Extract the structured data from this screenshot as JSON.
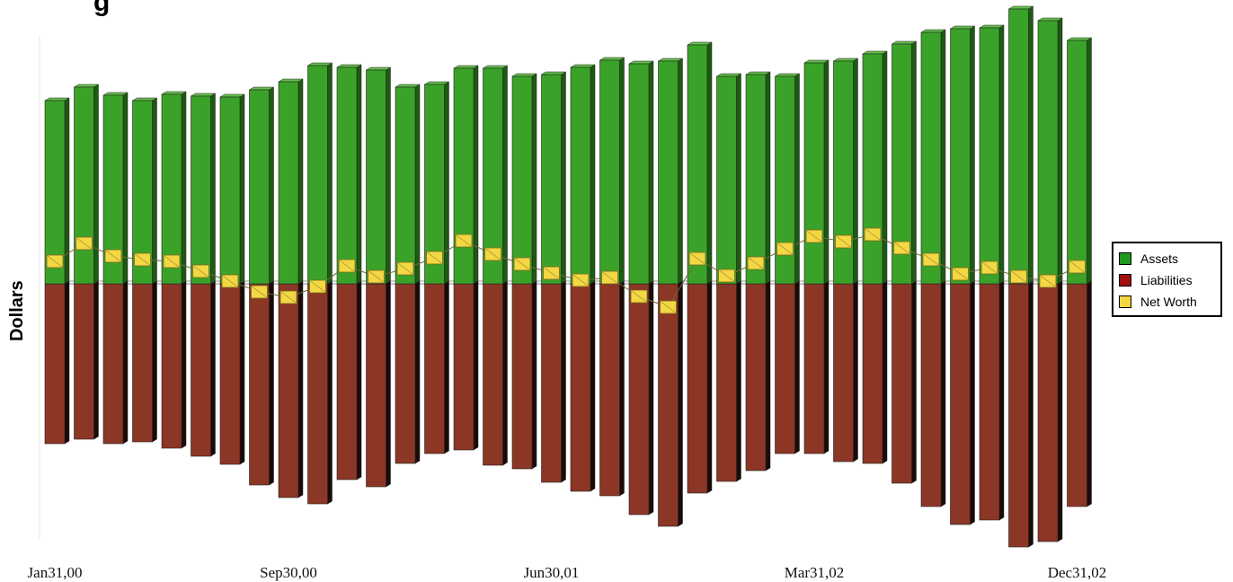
{
  "chart_data": {
    "type": "bar",
    "title": "g",
    "ylabel": "Dollars",
    "x_tick_labels": [
      "Jan31,00",
      "Sep30,00",
      "Jun30,01",
      "Mar31,02",
      "Dec31,02"
    ],
    "x_tick_positions": [
      0,
      8,
      17,
      26,
      35
    ],
    "periods": 36,
    "series": [
      {
        "name": "Assets",
        "color": "#3aa228",
        "values": [
          204,
          219,
          210,
          204,
          211,
          209,
          208,
          216,
          225,
          243,
          241,
          238,
          219,
          222,
          240,
          240,
          231,
          233,
          241,
          249,
          245,
          248,
          266,
          231,
          233,
          231,
          246,
          248,
          256,
          267,
          280,
          284,
          285,
          306,
          293,
          271
        ]
      },
      {
        "name": "Liabilities",
        "color": "#8c3626",
        "values": [
          -178,
          -173,
          -178,
          -176,
          -183,
          -192,
          -201,
          -224,
          -238,
          -245,
          -218,
          -226,
          -200,
          -189,
          -185,
          -202,
          -206,
          -221,
          -231,
          -236,
          -257,
          -270,
          -233,
          -220,
          -208,
          -189,
          -189,
          -198,
          -200,
          -222,
          -248,
          -268,
          -263,
          -293,
          -287,
          -248
        ]
      },
      {
        "name": "Net Worth",
        "color": "#f3d743",
        "values": [
          25,
          45,
          31,
          27,
          25,
          14,
          3,
          -9,
          -15,
          -3,
          20,
          8,
          17,
          29,
          48,
          33,
          22,
          12,
          4,
          7,
          -14,
          -26,
          28,
          9,
          23,
          39,
          53,
          47,
          55,
          40,
          27,
          11,
          18,
          8,
          3,
          19
        ]
      }
    ],
    "legend": {
      "position": "right",
      "items": [
        "Assets",
        "Liabilities",
        "Net Worth"
      ]
    },
    "grid": false
  }
}
